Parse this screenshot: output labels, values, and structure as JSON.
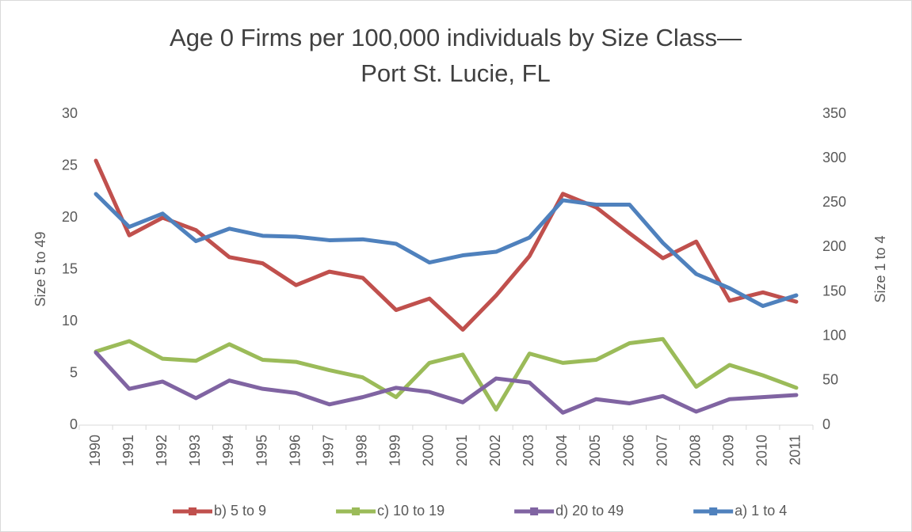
{
  "chart_data": {
    "type": "line",
    "title": [
      "Age 0 Firms per 100,000 individuals by Size Class—",
      "Port St. Lucie, FL"
    ],
    "ylabel": "Size 5 to 49",
    "y2label": "Size 1 to 4",
    "categories": [
      "1990",
      "1991",
      "1992",
      "1993",
      "1994",
      "1995",
      "1996",
      "1997",
      "1998",
      "1999",
      "2000",
      "2001",
      "2002",
      "2003",
      "2004",
      "2005",
      "2006",
      "2007",
      "2008",
      "2009",
      "2010",
      "2011"
    ],
    "ylim": [
      0,
      30
    ],
    "yticks": [
      0,
      5,
      10,
      15,
      20,
      25,
      30
    ],
    "y2lim": [
      0,
      350
    ],
    "y2ticks": [
      0,
      50,
      100,
      150,
      200,
      250,
      300,
      350
    ],
    "legend": "bottom",
    "series": [
      {
        "name": "b) 5 to 9",
        "color": "#c0504d",
        "values": [
          25.5,
          18.3,
          20.0,
          18.8,
          16.2,
          15.6,
          13.5,
          14.8,
          14.2,
          11.1,
          12.2,
          9.2,
          12.5,
          16.3,
          22.3,
          21.0,
          18.5,
          16.1,
          17.7,
          12.0,
          12.8,
          11.9
        ]
      },
      {
        "name": "c) 10 to 19",
        "color": "#9bbb59",
        "values": [
          7.1,
          8.1,
          6.4,
          6.2,
          7.8,
          6.3,
          6.1,
          5.3,
          4.6,
          2.7,
          6.0,
          6.8,
          1.5,
          6.9,
          6.0,
          6.3,
          7.9,
          8.3,
          3.7,
          5.8,
          4.8,
          3.6
        ]
      },
      {
        "name": "d) 20 to 49",
        "color": "#8064a2",
        "values": [
          7.0,
          3.5,
          4.2,
          2.6,
          4.3,
          3.5,
          3.1,
          2.0,
          2.7,
          3.6,
          3.2,
          2.2,
          4.5,
          4.1,
          1.2,
          2.5,
          2.1,
          2.8,
          1.3,
          2.5,
          2.7,
          2.9
        ]
      },
      {
        "name": "a) 1 to 4",
        "color": "#4f81bd",
        "axis": "y2",
        "values": [
          260,
          223,
          238,
          207,
          221,
          213,
          212,
          208,
          209,
          204,
          183,
          191,
          195,
          211,
          253,
          248,
          248,
          205,
          170,
          154,
          134,
          146
        ]
      }
    ]
  }
}
